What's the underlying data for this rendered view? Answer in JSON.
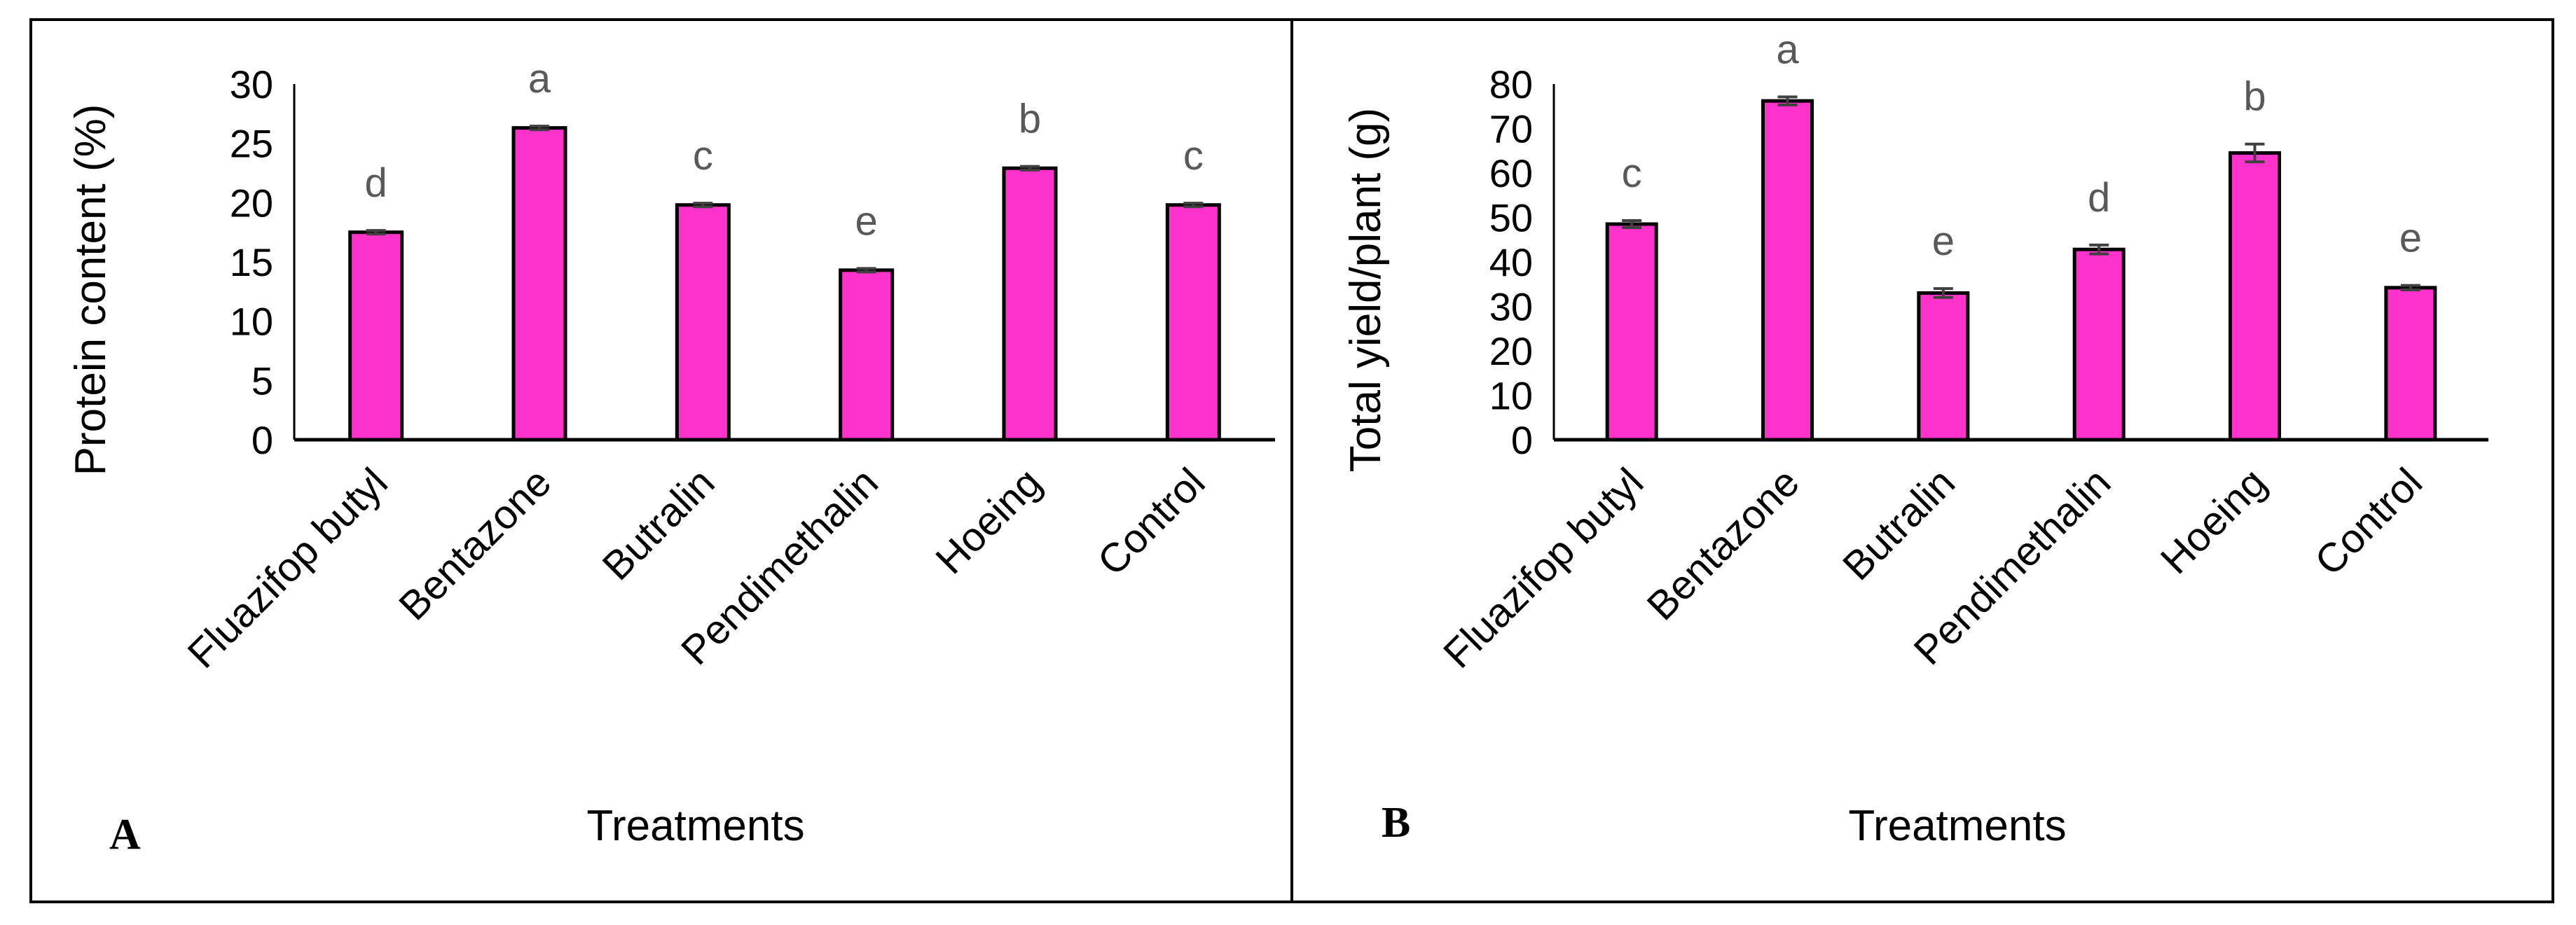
{
  "colors": {
    "bar_fill": "#ff33cc",
    "bar_stroke": "#000000",
    "error_bar": "#404040",
    "significance_text": "#595959",
    "axis": "#000000",
    "frame": "#000000"
  },
  "chart_data": [
    {
      "panel": "A",
      "type": "bar",
      "categories": [
        "Fluazifop butyl",
        "Bentazone",
        "Butralin",
        "Pendimethalin",
        "Hoeing",
        "Control"
      ],
      "values": [
        17.5,
        26.3,
        19.8,
        14.3,
        22.9,
        19.8
      ],
      "errors": [
        0.15,
        0.15,
        0.15,
        0.15,
        0.15,
        0.15
      ],
      "significance": [
        "d",
        "a",
        "c",
        "e",
        "b",
        "c"
      ],
      "xlabel": "Treatments",
      "ylabel": "Protein content (%)",
      "ylim": [
        0,
        30
      ],
      "yticks": [
        "0",
        "5",
        "10",
        "15",
        "20",
        "25",
        "30"
      ],
      "grid": false
    },
    {
      "panel": "B",
      "type": "bar",
      "categories": [
        "Fluazifop butyl",
        "Bentazone",
        "Butralin",
        "Pendimethalin",
        "Hoeing",
        "Control"
      ],
      "values": [
        48.5,
        76.2,
        33.0,
        42.8,
        64.5,
        34.2
      ],
      "errors": [
        0.8,
        0.9,
        1.0,
        1.0,
        2.0,
        0.5
      ],
      "significance": [
        "c",
        "a",
        "e",
        "d",
        "b",
        "e"
      ],
      "xlabel": "Treatments",
      "ylabel": "Total yield/plant (g)",
      "ylim": [
        0,
        80
      ],
      "yticks": [
        "0",
        "10",
        "20",
        "30",
        "40",
        "50",
        "60",
        "70",
        "80"
      ],
      "grid": false
    }
  ]
}
